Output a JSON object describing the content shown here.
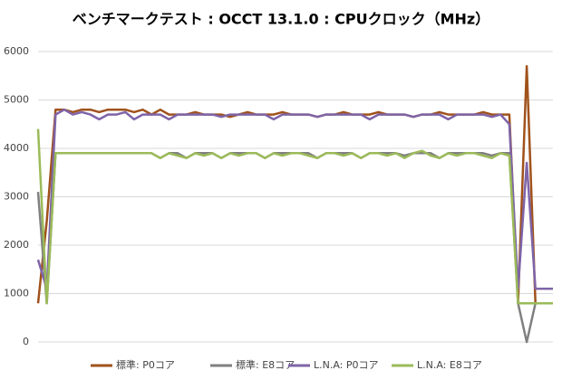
{
  "chart_data": {
    "type": "line",
    "title": "ベンチマークテスト : OCCT 13.1.0 : CPUクロック（MHz）",
    "ylim": [
      0,
      6000
    ],
    "yticks": [
      0,
      1000,
      2000,
      3000,
      4000,
      5000,
      6000
    ],
    "grid": true,
    "legend": "bottom",
    "series": [
      {
        "name": "標準: P0コア",
        "color": "#a0521c",
        "values": [
          800,
          2500,
          4800,
          4800,
          4750,
          4800,
          4800,
          4750,
          4800,
          4800,
          4800,
          4750,
          4800,
          4700,
          4800,
          4700,
          4700,
          4700,
          4750,
          4700,
          4700,
          4700,
          4650,
          4700,
          4750,
          4700,
          4700,
          4700,
          4750,
          4700,
          4700,
          4700,
          4650,
          4700,
          4700,
          4750,
          4700,
          4700,
          4700,
          4750,
          4700,
          4700,
          4700,
          4650,
          4700,
          4700,
          4750,
          4700,
          4700,
          4700,
          4700,
          4750,
          4700,
          4700,
          4700,
          800,
          5700,
          800,
          800,
          800
        ]
      },
      {
        "name": "標準: E8コア",
        "color": "#808080",
        "values": [
          3100,
          800,
          3900,
          3900,
          3900,
          3900,
          3900,
          3900,
          3900,
          3900,
          3900,
          3900,
          3900,
          3900,
          3800,
          3900,
          3900,
          3800,
          3900,
          3900,
          3900,
          3800,
          3900,
          3900,
          3900,
          3900,
          3800,
          3900,
          3900,
          3900,
          3900,
          3900,
          3800,
          3900,
          3900,
          3900,
          3900,
          3800,
          3900,
          3900,
          3900,
          3900,
          3850,
          3900,
          3900,
          3900,
          3800,
          3900,
          3900,
          3900,
          3900,
          3900,
          3850,
          3900,
          3900,
          800,
          0,
          800,
          800,
          800
        ]
      },
      {
        "name": "L.N.A: P0コア",
        "color": "#7e64a8",
        "values": [
          1700,
          1100,
          4700,
          4800,
          4700,
          4750,
          4700,
          4600,
          4700,
          4700,
          4750,
          4600,
          4700,
          4700,
          4700,
          4600,
          4700,
          4700,
          4700,
          4700,
          4700,
          4650,
          4700,
          4700,
          4700,
          4700,
          4700,
          4600,
          4700,
          4700,
          4700,
          4700,
          4650,
          4700,
          4700,
          4700,
          4700,
          4700,
          4600,
          4700,
          4700,
          4700,
          4700,
          4650,
          4700,
          4700,
          4700,
          4600,
          4700,
          4700,
          4700,
          4700,
          4650,
          4700,
          4500,
          1100,
          3700,
          1100,
          1100,
          1100
        ]
      },
      {
        "name": "L.N.A: E8コア",
        "color": "#9bbb59",
        "values": [
          4400,
          800,
          3900,
          3900,
          3900,
          3900,
          3900,
          3900,
          3900,
          3900,
          3900,
          3900,
          3900,
          3900,
          3800,
          3900,
          3850,
          3800,
          3900,
          3850,
          3900,
          3800,
          3900,
          3850,
          3900,
          3900,
          3800,
          3900,
          3850,
          3900,
          3900,
          3850,
          3800,
          3900,
          3900,
          3850,
          3900,
          3800,
          3900,
          3900,
          3850,
          3900,
          3800,
          3900,
          3950,
          3850,
          3800,
          3900,
          3850,
          3900,
          3900,
          3850,
          3800,
          3900,
          3850,
          800,
          800,
          800,
          800,
          800
        ]
      }
    ]
  }
}
